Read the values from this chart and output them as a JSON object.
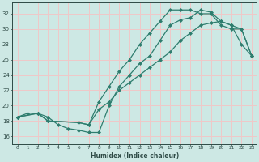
{
  "bg_color": "#cde8e4",
  "grid_color": "#f0c8c8",
  "line_color": "#2e7d6e",
  "marker_color": "#2e7d6e",
  "xlabel": "Humidex (Indice chaleur)",
  "ylabel_ticks": [
    16,
    18,
    20,
    22,
    24,
    26,
    28,
    30,
    32
  ],
  "xlabel_ticks": [
    0,
    1,
    2,
    3,
    4,
    5,
    6,
    7,
    8,
    9,
    10,
    11,
    12,
    13,
    14,
    15,
    16,
    17,
    18,
    19,
    20,
    21,
    22,
    23
  ],
  "xlim": [
    -0.5,
    23.5
  ],
  "ylim": [
    15.0,
    33.5
  ],
  "line1_x": [
    0,
    1,
    2,
    3,
    4,
    5,
    6,
    7,
    8,
    9,
    10,
    11,
    12,
    13,
    14,
    15,
    16,
    17,
    18,
    19,
    20,
    21,
    22,
    23
  ],
  "line1_y": [
    18.5,
    19.0,
    19.0,
    18.5,
    17.5,
    17.0,
    16.8,
    16.5,
    16.5,
    20.0,
    22.5,
    24.0,
    25.5,
    26.5,
    28.5,
    30.5,
    31.2,
    31.5,
    32.5,
    32.2,
    31.0,
    30.5,
    28.0,
    26.5
  ],
  "line2_x": [
    0,
    2,
    3,
    6,
    7,
    8,
    9,
    10,
    11,
    12,
    13,
    14,
    15,
    16,
    17,
    18,
    19,
    20,
    21,
    22,
    23
  ],
  "line2_y": [
    18.5,
    19.0,
    18.0,
    17.8,
    17.5,
    20.5,
    22.5,
    24.5,
    26.0,
    28.0,
    29.5,
    31.0,
    32.5,
    32.5,
    32.5,
    32.0,
    32.0,
    30.5,
    30.0,
    30.0,
    26.5
  ],
  "line3_x": [
    0,
    2,
    3,
    6,
    7,
    8,
    9,
    10,
    11,
    12,
    13,
    14,
    15,
    16,
    17,
    18,
    19,
    20,
    21,
    22,
    23
  ],
  "line3_y": [
    18.5,
    19.0,
    18.0,
    17.8,
    17.5,
    19.5,
    20.5,
    22.0,
    23.0,
    24.0,
    25.0,
    26.0,
    27.0,
    28.5,
    29.5,
    30.5,
    30.8,
    31.0,
    30.5,
    30.0,
    26.5
  ]
}
